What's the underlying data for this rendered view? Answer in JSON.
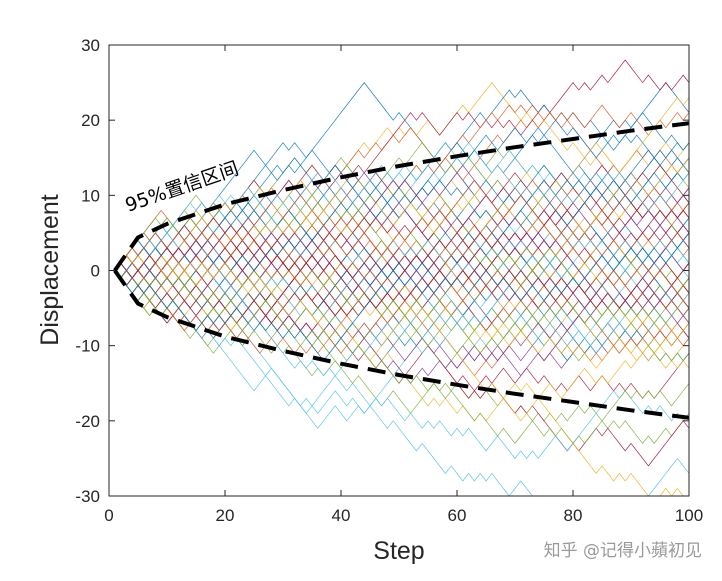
{
  "chart_data": {
    "type": "line",
    "title": "",
    "xlabel": "Step",
    "ylabel": "Displacement",
    "xlim": [
      0,
      100
    ],
    "ylim": [
      -30,
      30
    ],
    "x_ticks": [
      "0",
      "20",
      "40",
      "60",
      "80",
      "100"
    ],
    "y_ticks": [
      "30",
      "20",
      "10",
      "0",
      "-10",
      "-20",
      "-30"
    ],
    "grid": false,
    "random_walk": {
      "paths": 100,
      "steps": 100,
      "step_size": 1,
      "start": 0
    },
    "confidence_band": {
      "label": "95%置信区间",
      "line_style": "dashed",
      "color": "#000000",
      "x": [
        1,
        5,
        10,
        20,
        30,
        40,
        50,
        60,
        70,
        80,
        90,
        100
      ],
      "upper": [
        0,
        4.4,
        6.2,
        8.8,
        10.7,
        12.4,
        13.9,
        15.2,
        16.4,
        17.5,
        18.6,
        19.6
      ],
      "lower": [
        0,
        -4.4,
        -6.2,
        -8.8,
        -10.7,
        -12.4,
        -13.9,
        -15.2,
        -16.4,
        -17.5,
        -18.6,
        -19.6
      ]
    },
    "series_colors": [
      "#0072BD",
      "#D95319",
      "#EDB120",
      "#7E2F8E",
      "#77AC30",
      "#4DBEEE",
      "#A2142F"
    ]
  },
  "watermark": "知乎 @记得小蘋初见"
}
